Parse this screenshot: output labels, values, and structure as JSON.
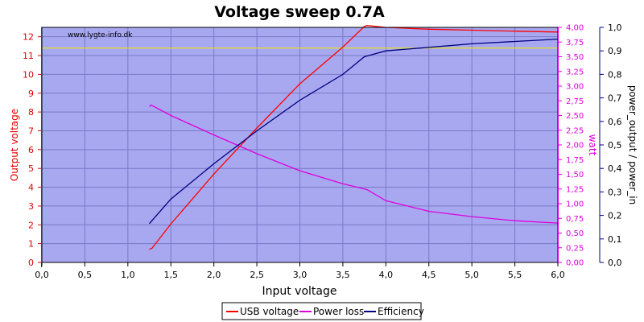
{
  "chart_data": {
    "type": "line",
    "title": "Voltage sweep 0.7A",
    "watermark": "www.lygte-info.dk",
    "xlabel": "Input voltage",
    "xlim": [
      0,
      6
    ],
    "xticks": [
      "0,0",
      "0,5",
      "1,0",
      "1,5",
      "2,0",
      "2,5",
      "3,0",
      "3,5",
      "4,0",
      "4,5",
      "5,0",
      "5,5",
      "6,0"
    ],
    "axes": {
      "left": {
        "label": "Output voltage",
        "min": 0,
        "max": 12.5,
        "ticks": [
          "0",
          "1",
          "2",
          "3",
          "4",
          "5",
          "6",
          "7",
          "8",
          "9",
          "10",
          "11",
          "12"
        ],
        "color": "#e00000"
      },
      "right1": {
        "label": "watt",
        "min": 0,
        "max": 4.0,
        "ticks": [
          "0,00",
          "0,25",
          "0,50",
          "0,75",
          "1,00",
          "1,25",
          "1,50",
          "1,75",
          "2,00",
          "2,25",
          "2,50",
          "2,75",
          "3,00",
          "3,25",
          "3,50",
          "3,75",
          "4,00"
        ],
        "color": "#dd00dd"
      },
      "right2": {
        "label": "power_output / power_in",
        "min": 0,
        "max": 1.0,
        "ticks": [
          "0,0",
          "0,1",
          "0,2",
          "0,3",
          "0,4",
          "0,5",
          "0,6",
          "0,7",
          "0,8",
          "0,9",
          "1,0"
        ],
        "color": "#000080"
      }
    },
    "reference_line": {
      "axis": "left",
      "value": 11.4,
      "color": "#f0f000"
    },
    "grid": true,
    "plot_background": "#a8a8f0",
    "legend_position": "bottom-center",
    "series": [
      {
        "name": "USB voltage",
        "axis": "left",
        "color": "#ff0000",
        "x": [
          1.25,
          1.28,
          1.5,
          2.0,
          2.5,
          3.0,
          3.5,
          3.75,
          3.78,
          4.0,
          4.5,
          5.0,
          5.5,
          6.0
        ],
        "y": [
          0.7,
          0.75,
          2.05,
          4.7,
          7.15,
          9.5,
          11.45,
          12.55,
          12.6,
          12.5,
          12.4,
          12.35,
          12.3,
          12.25
        ]
      },
      {
        "name": "Power loss",
        "axis": "right1",
        "color": "#dd00dd",
        "x": [
          1.25,
          1.27,
          1.5,
          2.0,
          2.5,
          3.0,
          3.5,
          3.78,
          4.0,
          4.5,
          5.0,
          5.5,
          6.0
        ],
        "y": [
          2.65,
          2.68,
          2.5,
          2.17,
          1.85,
          1.56,
          1.34,
          1.24,
          1.05,
          0.87,
          0.78,
          0.71,
          0.67
        ]
      },
      {
        "name": "Efficiency",
        "axis": "right2",
        "color": "#000080",
        "x": [
          1.25,
          1.5,
          2.0,
          2.5,
          3.0,
          3.5,
          3.75,
          3.8,
          4.0,
          4.5,
          5.0,
          5.5,
          6.0
        ],
        "y": [
          0.165,
          0.27,
          0.42,
          0.56,
          0.69,
          0.8,
          0.875,
          0.88,
          0.9,
          0.915,
          0.93,
          0.94,
          0.95
        ]
      }
    ]
  }
}
